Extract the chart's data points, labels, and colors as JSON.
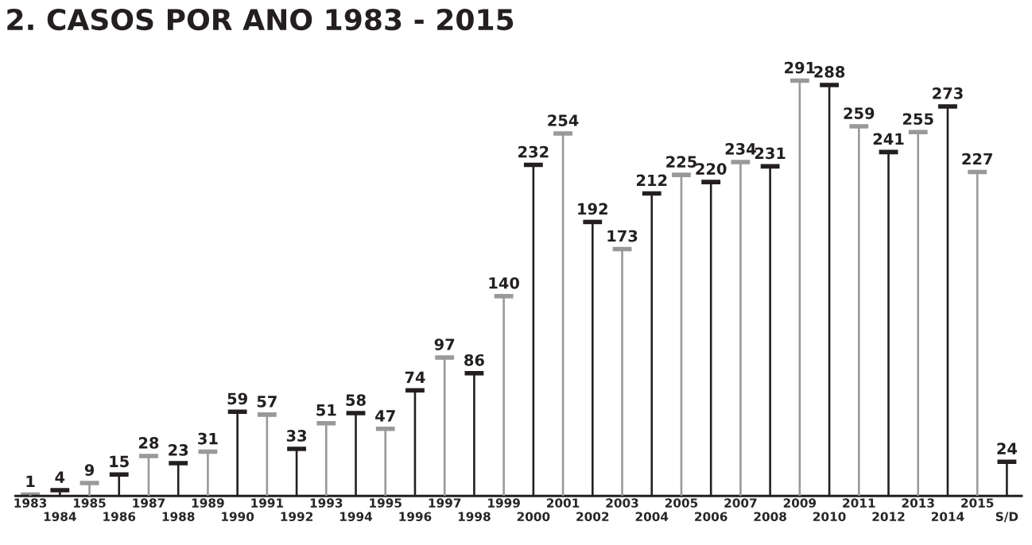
{
  "chart_data": {
    "type": "bar",
    "title": "2. CASOS POR ANO 1983 - 2015",
    "categories": [
      "1983",
      "1984",
      "1985",
      "1986",
      "1987",
      "1988",
      "1989",
      "1990",
      "1991",
      "1992",
      "1993",
      "1994",
      "1995",
      "1996",
      "1997",
      "1998",
      "1999",
      "2000",
      "2001",
      "2002",
      "2003",
      "2004",
      "2005",
      "2006",
      "2007",
      "2008",
      "2009",
      "2010",
      "2011",
      "2012",
      "2013",
      "2014",
      "2015",
      "S/D"
    ],
    "values": [
      1,
      4,
      9,
      15,
      28,
      23,
      31,
      59,
      57,
      33,
      51,
      58,
      47,
      74,
      97,
      86,
      140,
      232,
      254,
      192,
      173,
      212,
      225,
      220,
      234,
      231,
      291,
      288,
      259,
      241,
      255,
      273,
      227,
      24
    ],
    "colors": [
      "#999999",
      "#231f20",
      "#999999",
      "#231f20",
      "#999999",
      "#231f20",
      "#999999",
      "#231f20",
      "#999999",
      "#231f20",
      "#999999",
      "#231f20",
      "#999999",
      "#231f20",
      "#999999",
      "#231f20",
      "#999999",
      "#231f20",
      "#999999",
      "#231f20",
      "#999999",
      "#231f20",
      "#999999",
      "#231f20",
      "#999999",
      "#231f20",
      "#999999",
      "#231f20",
      "#999999",
      "#231f20",
      "#999999",
      "#231f20",
      "#999999",
      "#231f20"
    ],
    "data_labels": true,
    "grid": false,
    "legend": false
  }
}
